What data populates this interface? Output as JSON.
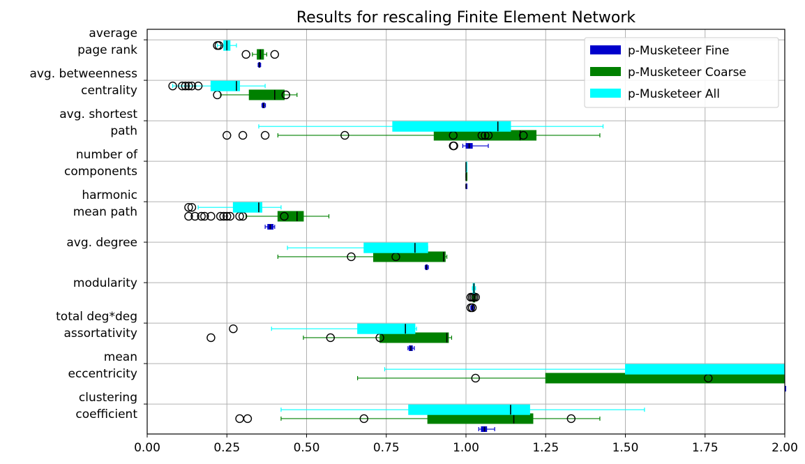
{
  "chart_data": {
    "type": "boxplot",
    "orientation": "horizontal",
    "title": "Results for rescaling Finite Element Network",
    "xlabel": "",
    "ylabel": "",
    "xlim": [
      0,
      2
    ],
    "x_ticks": [
      "0.00",
      "0.25",
      "0.50",
      "0.75",
      "1.00",
      "1.25",
      "1.50",
      "1.75",
      "2.00"
    ],
    "grid": true,
    "legend_position": "top-right",
    "categories": [
      {
        "line1": "average",
        "line2": "page rank"
      },
      {
        "line1": "avg. betweenness",
        "line2": "centrality"
      },
      {
        "line1": "avg. shortest",
        "line2": "path"
      },
      {
        "line1": "number of",
        "line2": "components"
      },
      {
        "line1": "harmonic",
        "line2": "mean path"
      },
      {
        "line1": "avg. degree",
        "line2": ""
      },
      {
        "line1": "modularity",
        "line2": ""
      },
      {
        "line1": "total deg*deg",
        "line2": "assortativity"
      },
      {
        "line1": "mean",
        "line2": "eccentricity"
      },
      {
        "line1": "clustering",
        "line2": "coefficient"
      }
    ],
    "series": [
      {
        "name": "p-Musketeer Fine",
        "color": "#0000cc",
        "boxes": [
          {
            "whislo": 0.348,
            "q1": 0.35,
            "med": 0.352,
            "q3": 0.354,
            "whishi": 0.356,
            "fliers": []
          },
          {
            "whislo": 0.36,
            "q1": 0.362,
            "med": 0.365,
            "q3": 0.368,
            "whishi": 0.371,
            "fliers": []
          },
          {
            "whislo": 0.99,
            "q1": 1.0,
            "med": 1.01,
            "q3": 1.02,
            "whishi": 1.07,
            "fliers": [
              0.96,
              0.962
            ]
          },
          {
            "whislo": 1.0,
            "q1": 1.0,
            "med": 1.0,
            "q3": 1.0,
            "whishi": 1.0,
            "fliers": []
          },
          {
            "whislo": 0.37,
            "q1": 0.378,
            "med": 0.386,
            "q3": 0.395,
            "whishi": 0.4,
            "fliers": []
          },
          {
            "whislo": 0.872,
            "q1": 0.874,
            "med": 0.876,
            "q3": 0.879,
            "whishi": 0.882,
            "fliers": []
          },
          {
            "whislo": 1.015,
            "q1": 1.017,
            "med": 1.02,
            "q3": 1.023,
            "whishi": 1.026,
            "fliers": [
              1.015,
              1.02
            ]
          },
          {
            "whislo": 0.818,
            "q1": 0.822,
            "med": 0.827,
            "q3": 0.832,
            "whishi": 0.838,
            "fliers": []
          },
          {
            "whislo": 2.05,
            "q1": 2.05,
            "med": 2.05,
            "q3": 2.05,
            "whishi": 2.05,
            "fliers": []
          },
          {
            "whislo": 1.04,
            "q1": 1.048,
            "med": 1.058,
            "q3": 1.065,
            "whishi": 1.09,
            "fliers": []
          }
        ]
      },
      {
        "name": "p-Musketeer Coarse",
        "color": "#008000",
        "boxes": [
          {
            "whislo": 0.33,
            "q1": 0.345,
            "med": 0.355,
            "q3": 0.365,
            "whishi": 0.375,
            "fliers": [
              0.31,
              0.4
            ]
          },
          {
            "whislo": 0.23,
            "q1": 0.32,
            "med": 0.4,
            "q3": 0.43,
            "whishi": 0.47,
            "fliers": [
              0.22,
              0.435
            ]
          },
          {
            "whislo": 0.41,
            "q1": 0.9,
            "med": 1.17,
            "q3": 1.22,
            "whishi": 1.42,
            "fliers": [
              0.25,
              0.3,
              0.37,
              0.62,
              0.96,
              1.05,
              1.06,
              1.07,
              1.18
            ]
          },
          {
            "whislo": 1.0,
            "q1": 1.0,
            "med": 1.0,
            "q3": 1.0,
            "whishi": 1.0,
            "fliers": []
          },
          {
            "whislo": 0.31,
            "q1": 0.41,
            "med": 0.47,
            "q3": 0.49,
            "whishi": 0.57,
            "fliers": [
              0.13,
              0.15,
              0.17,
              0.18,
              0.2,
              0.23,
              0.24,
              0.25,
              0.26,
              0.29,
              0.3,
              0.43
            ]
          },
          {
            "whislo": 0.41,
            "q1": 0.71,
            "med": 0.93,
            "q3": 0.935,
            "whishi": 0.94,
            "fliers": [
              0.64,
              0.78
            ]
          },
          {
            "whislo": 1.02,
            "q1": 1.022,
            "med": 1.025,
            "q3": 1.028,
            "whishi": 1.032,
            "fliers": [
              1.015,
              1.02,
              1.025,
              1.03
            ]
          },
          {
            "whislo": 0.49,
            "q1": 0.73,
            "med": 0.94,
            "q3": 0.945,
            "whishi": 0.955,
            "fliers": [
              0.2,
              0.575,
              0.73
            ]
          },
          {
            "whislo": 0.66,
            "q1": 1.25,
            "med": 2.05,
            "q3": 2.05,
            "whishi": 2.05,
            "fliers": [
              1.03,
              1.76
            ]
          },
          {
            "whislo": 0.42,
            "q1": 0.88,
            "med": 1.15,
            "q3": 1.21,
            "whishi": 1.42,
            "fliers": [
              0.29,
              0.315,
              0.68,
              1.33
            ]
          }
        ]
      },
      {
        "name": "p-Musketeer All",
        "color": "#00ffff",
        "boxes": [
          {
            "whislo": 0.22,
            "q1": 0.24,
            "med": 0.25,
            "q3": 0.26,
            "whishi": 0.28,
            "fliers": [
              0.22,
              0.225
            ]
          },
          {
            "whislo": 0.08,
            "q1": 0.2,
            "med": 0.28,
            "q3": 0.29,
            "whishi": 0.37,
            "fliers": [
              0.08,
              0.11,
              0.12,
              0.13,
              0.14,
              0.16
            ]
          },
          {
            "whislo": 0.35,
            "q1": 0.77,
            "med": 1.1,
            "q3": 1.14,
            "whishi": 1.43,
            "fliers": []
          },
          {
            "whislo": 1.0,
            "q1": 1.0,
            "med": 1.0,
            "q3": 1.0,
            "whishi": 1.0,
            "fliers": []
          },
          {
            "whislo": 0.16,
            "q1": 0.27,
            "med": 0.35,
            "q3": 0.36,
            "whishi": 0.42,
            "fliers": [
              0.13,
              0.14
            ]
          },
          {
            "whislo": 0.44,
            "q1": 0.68,
            "med": 0.84,
            "q3": 0.88,
            "whishi": 0.88,
            "fliers": []
          },
          {
            "whislo": 1.02,
            "q1": 1.022,
            "med": 1.025,
            "q3": 1.027,
            "whishi": 1.03,
            "fliers": []
          },
          {
            "whislo": 0.39,
            "q1": 0.66,
            "med": 0.81,
            "q3": 0.84,
            "whishi": 0.845,
            "fliers": [
              0.27
            ]
          },
          {
            "whislo": 0.745,
            "q1": 1.5,
            "med": 2.05,
            "q3": 2.05,
            "whishi": 2.05,
            "fliers": []
          },
          {
            "whislo": 0.42,
            "q1": 0.82,
            "med": 1.14,
            "q3": 1.2,
            "whishi": 1.56,
            "fliers": []
          }
        ]
      }
    ]
  }
}
